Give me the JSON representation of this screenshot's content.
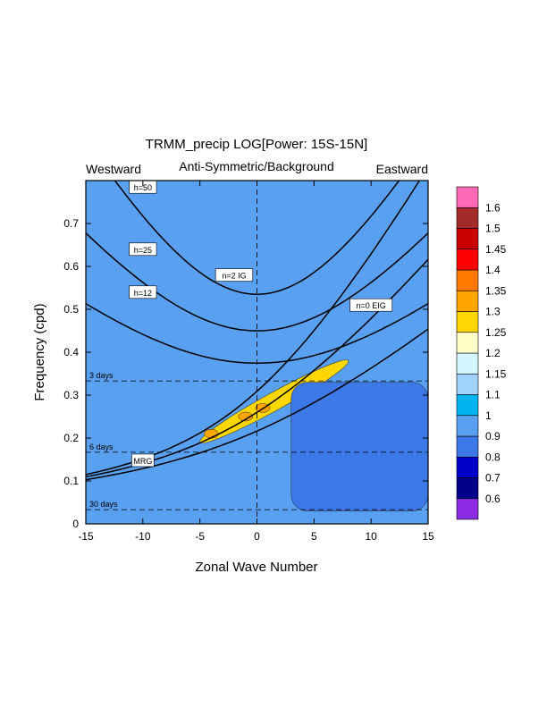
{
  "chart_data": {
    "type": "heatmap",
    "title": "TRMM_precip LOG[Power: 15S-15N]",
    "subtitle": "Anti-Symmetric/Background",
    "left_label": "Westward",
    "right_label": "Eastward",
    "xlabel": "Zonal Wave Number",
    "ylabel": "Frequency (cpd)",
    "xlim": [
      -15,
      15
    ],
    "ylim": [
      0,
      0.8
    ],
    "x_ticks": [
      -15,
      -10,
      -5,
      0,
      5,
      10,
      15
    ],
    "y_ticks": [
      0,
      0.1,
      0.2,
      0.3,
      0.4,
      0.5,
      0.6,
      0.7
    ],
    "grid": false,
    "legend_placement": "right",
    "colorbar": {
      "labels": [
        "0.6",
        "0.7",
        "0.8",
        "0.9",
        "1",
        "1.1",
        "1.15",
        "1.2",
        "1.25",
        "1.3",
        "1.35",
        "1.4",
        "1.45",
        "1.5",
        "1.6"
      ],
      "colors": [
        "#8a2be2",
        "#00008b",
        "#0000c8",
        "#3c78e6",
        "#5aa0f0",
        "#00b4f0",
        "#a0d2fa",
        "#d2f5ff",
        "#ffffc8",
        "#ffd700",
        "#ffa500",
        "#ff7800",
        "#ff0000",
        "#c80000",
        "#a52a2a",
        "#ff69b4"
      ]
    },
    "period_lines": [
      {
        "label": "3 days",
        "frequency": 0.333
      },
      {
        "label": "6 days",
        "frequency": 0.167
      },
      {
        "label": "30 days",
        "frequency": 0.033
      }
    ],
    "dispersion_curve_labels": [
      "h=50",
      "h=25",
      "h=12",
      "n=2 IG",
      "n=0 EIG",
      "MRG"
    ],
    "equivalent_depths_m": [
      12,
      25,
      50
    ],
    "background_value": 0.9,
    "features": [
      {
        "name": "Kelvin-MRG ridge",
        "level": 1.25,
        "x_range": [
          -5,
          8
        ],
        "frequency_range": [
          0.19,
          0.38
        ]
      },
      {
        "name": "local max",
        "level": 1.3,
        "x": -4,
        "frequency": 0.21
      },
      {
        "name": "local max",
        "level": 1.3,
        "x": -1,
        "frequency": 0.25
      },
      {
        "name": "local max",
        "level": 1.3,
        "x": 0.5,
        "frequency": 0.27
      },
      {
        "name": "low-power region",
        "level": 0.8,
        "x_range": [
          3,
          15
        ],
        "frequency_range": [
          0.03,
          0.33
        ]
      }
    ]
  }
}
